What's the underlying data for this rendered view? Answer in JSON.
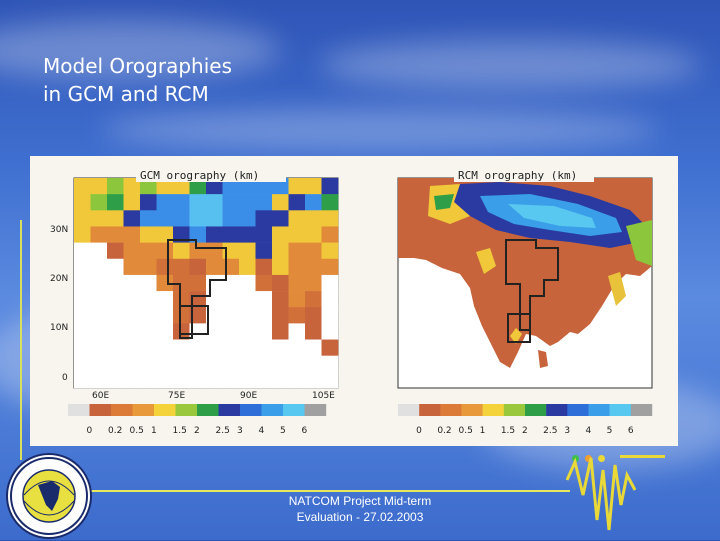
{
  "slide": {
    "title_line1": "Model Orographies",
    "title_line2": "in GCM and RCM",
    "footer_line1": "NATCOM Project Mid-term",
    "footer_line2": "Evaluation - 27.02.2003"
  },
  "figure": {
    "left_map": {
      "title": "GCM orography (km)",
      "y_ticks": [
        "30N",
        "20N",
        "10N",
        "0"
      ],
      "x_ticks": [
        "60E",
        "75E",
        "90E",
        "105E"
      ]
    },
    "right_map": {
      "title": "RCM orography (km)"
    },
    "colorbar_labels": [
      "0",
      "0.2",
      "0.5",
      "1",
      "1.5",
      "2",
      "2.5",
      "3",
      "4",
      "5",
      "6"
    ],
    "colorbar_colors": [
      "#e0e0e0",
      "#c8643c",
      "#dc7a38",
      "#e89a3a",
      "#f4d23a",
      "#9ac83c",
      "#2e9e48",
      "#2a3aa0",
      "#2e6ed8",
      "#3a9ee8",
      "#58c8f0",
      "#a0a0a0"
    ],
    "colors": {
      "sea": "#ffffff",
      "lowland": "#c8643c",
      "plain": "#d2703a",
      "plateau": "#e08a3a",
      "hill": "#f0c83a",
      "mid": "#8cc63c",
      "high": "#2e9e48",
      "mountain": "#2a3aa0",
      "peak": "#3a8ee8",
      "top": "#58c0f0"
    }
  }
}
